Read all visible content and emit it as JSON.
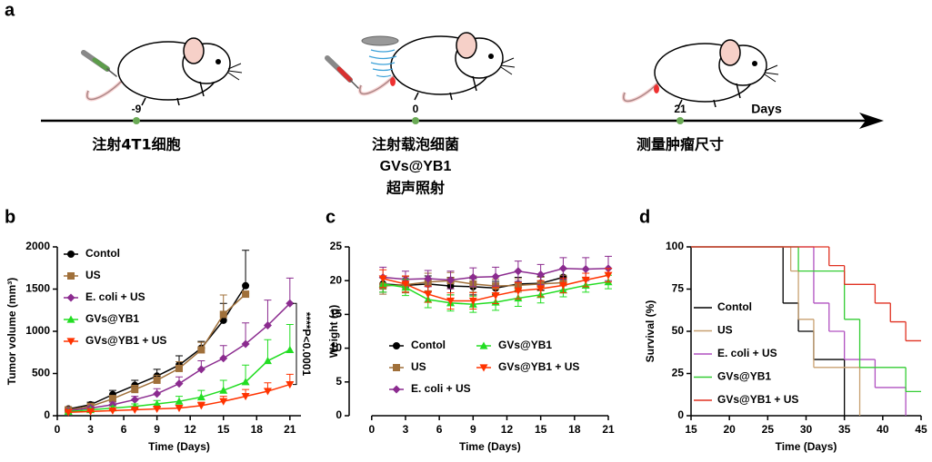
{
  "panel_a": {
    "label": "a",
    "ticks": [
      "-9",
      "0",
      "21"
    ],
    "unit": "Days",
    "steps": [
      [
        "注射4T1细胞"
      ],
      [
        "注射载泡细菌",
        "GVs@YB1",
        "超声照射"
      ],
      [
        "测量肿瘤尺寸"
      ]
    ]
  },
  "chart_data": [
    {
      "type": "line",
      "panel_label": "b",
      "xlabel": "Time (Days)",
      "ylabel": "Tumor volume (mm³)",
      "x": [
        1,
        3,
        5,
        7,
        9,
        11,
        13,
        15,
        17,
        19,
        21
      ],
      "xlim": [
        0,
        22
      ],
      "xticks": [
        0,
        3,
        6,
        9,
        12,
        15,
        18,
        21
      ],
      "ylim": [
        0,
        2000
      ],
      "yticks": [
        0,
        500,
        1000,
        1500,
        2000
      ],
      "error_direction": "up",
      "annotation": "****P<0.0001",
      "series": [
        {
          "name": "Contol",
          "color": "#000000",
          "marker": "circle",
          "values": [
            80,
            130,
            250,
            360,
            470,
            600,
            800,
            1130,
            1540,
            null,
            null
          ],
          "errors": [
            20,
            30,
            50,
            60,
            80,
            110,
            80,
            200,
            420,
            null,
            null
          ]
        },
        {
          "name": "US",
          "color": "#a0703a",
          "marker": "square",
          "values": [
            70,
            110,
            200,
            310,
            420,
            560,
            780,
            1200,
            1440,
            null,
            null
          ],
          "errors": [
            15,
            20,
            40,
            50,
            60,
            80,
            90,
            230,
            10,
            null,
            null
          ]
        },
        {
          "name": "E. coli + US",
          "color": "#8b2b8f",
          "marker": "diamond",
          "values": [
            60,
            90,
            130,
            190,
            260,
            380,
            550,
            680,
            850,
            1070,
            1330
          ],
          "errors": [
            10,
            20,
            30,
            40,
            60,
            80,
            100,
            150,
            250,
            300,
            300
          ]
        },
        {
          "name": "GVs@YB1",
          "color": "#22dd22",
          "marker": "triangle-up",
          "values": [
            50,
            70,
            90,
            110,
            140,
            170,
            220,
            300,
            400,
            650,
            780
          ],
          "errors": [
            10,
            15,
            20,
            30,
            40,
            60,
            80,
            120,
            200,
            250,
            300
          ]
        },
        {
          "name": "GVs@YB1 + US",
          "color": "#ff3300",
          "marker": "triangle-down",
          "values": [
            40,
            50,
            60,
            70,
            80,
            90,
            120,
            170,
            230,
            290,
            370
          ],
          "errors": [
            5,
            10,
            10,
            15,
            20,
            30,
            40,
            60,
            80,
            100,
            120
          ]
        }
      ]
    },
    {
      "type": "line",
      "panel_label": "c",
      "xlabel": "Time (Days)",
      "ylabel": "Weight (g)",
      "x": [
        1,
        3,
        5,
        7,
        9,
        11,
        13,
        15,
        17,
        19,
        21
      ],
      "xlim": [
        -2,
        21
      ],
      "xticks": [
        0,
        3,
        6,
        9,
        12,
        15,
        18,
        21
      ],
      "ylim": [
        0,
        25
      ],
      "yticks": [
        0,
        5,
        10,
        15,
        20,
        25
      ],
      "error_direction": "both",
      "series": [
        {
          "name": "Contol",
          "color": "#000000",
          "marker": "circle",
          "values": [
            19.5,
            19.3,
            19.5,
            19.2,
            19.1,
            18.9,
            19.5,
            19.6,
            20.5,
            null,
            null
          ],
          "errors": [
            1.2,
            1.0,
            1.2,
            1.3,
            1.2,
            1.0,
            1.0,
            1.0,
            1.2,
            null,
            null
          ]
        },
        {
          "name": "US",
          "color": "#a0703a",
          "marker": "square",
          "values": [
            19.2,
            19.4,
            19.8,
            20.0,
            19.5,
            19.2,
            19.3,
            19.5,
            19.7,
            null,
            null
          ],
          "errors": [
            1.2,
            1.2,
            1.3,
            1.2,
            1.2,
            1.0,
            1.0,
            1.0,
            1.1,
            null,
            null
          ]
        },
        {
          "name": "E. coli + US",
          "color": "#8b2b8f",
          "marker": "diamond",
          "values": [
            20.5,
            20.2,
            20.3,
            20.1,
            20.5,
            20.6,
            21.4,
            20.9,
            21.8,
            21.7,
            21.8
          ],
          "errors": [
            1.5,
            1.2,
            1.2,
            1.3,
            1.4,
            1.4,
            1.5,
            1.5,
            1.6,
            1.7,
            1.8
          ]
        },
        {
          "name": "GVs@YB1",
          "color": "#22dd22",
          "marker": "triangle-up",
          "values": [
            19.5,
            19.0,
            17.2,
            16.7,
            16.5,
            16.8,
            17.4,
            17.9,
            18.6,
            19.3,
            19.8
          ],
          "errors": [
            1.2,
            1.2,
            1.2,
            1.2,
            1.2,
            1.2,
            1.2,
            1.2,
            1.0,
            1.0,
            1.0
          ]
        },
        {
          "name": "GVs@YB1 + US",
          "color": "#ff3300",
          "marker": "triangle-down",
          "values": [
            20.3,
            19.5,
            18.0,
            17.0,
            17.0,
            17.8,
            18.5,
            18.8,
            19.3,
            20.1,
            20.8
          ],
          "errors": [
            1.3,
            1.2,
            1.2,
            1.2,
            1.2,
            1.2,
            1.2,
            1.2,
            1.1,
            1.0,
            1.0
          ]
        }
      ]
    },
    {
      "type": "step",
      "panel_label": "d",
      "xlabel": "Time (Days)",
      "ylabel": "Survival (%)",
      "xlim": [
        15,
        45
      ],
      "xticks": [
        15,
        20,
        25,
        30,
        35,
        40,
        45
      ],
      "ylim": [
        0,
        100
      ],
      "yticks": [
        0,
        25,
        50,
        75,
        100
      ],
      "series": [
        {
          "name": "Contol",
          "color": "#000000",
          "x": [
            15,
            27,
            29,
            31,
            35
          ],
          "values": [
            100,
            66.7,
            50,
            33.3,
            0
          ]
        },
        {
          "name": "US",
          "color": "#c8a070",
          "x": [
            15,
            28,
            29,
            31,
            37
          ],
          "values": [
            100,
            85.7,
            57.1,
            28.6,
            0
          ]
        },
        {
          "name": "E. coli + US",
          "color": "#b050c0",
          "x": [
            15,
            31,
            33,
            35,
            39,
            43
          ],
          "values": [
            100,
            66.7,
            50,
            33.3,
            16.7,
            0
          ]
        },
        {
          "name": "GVs@YB1",
          "color": "#33cc33",
          "x": [
            15,
            29,
            35,
            37,
            43,
            45
          ],
          "values": [
            100,
            85.7,
            57.1,
            28.6,
            14.3,
            14.3
          ]
        },
        {
          "name": "GVs@YB1 + US",
          "color": "#e03020",
          "x": [
            15,
            33,
            35,
            39,
            41,
            43,
            45
          ],
          "values": [
            100,
            88.9,
            77.8,
            66.7,
            55.6,
            44.4,
            44.4
          ]
        }
      ]
    }
  ]
}
